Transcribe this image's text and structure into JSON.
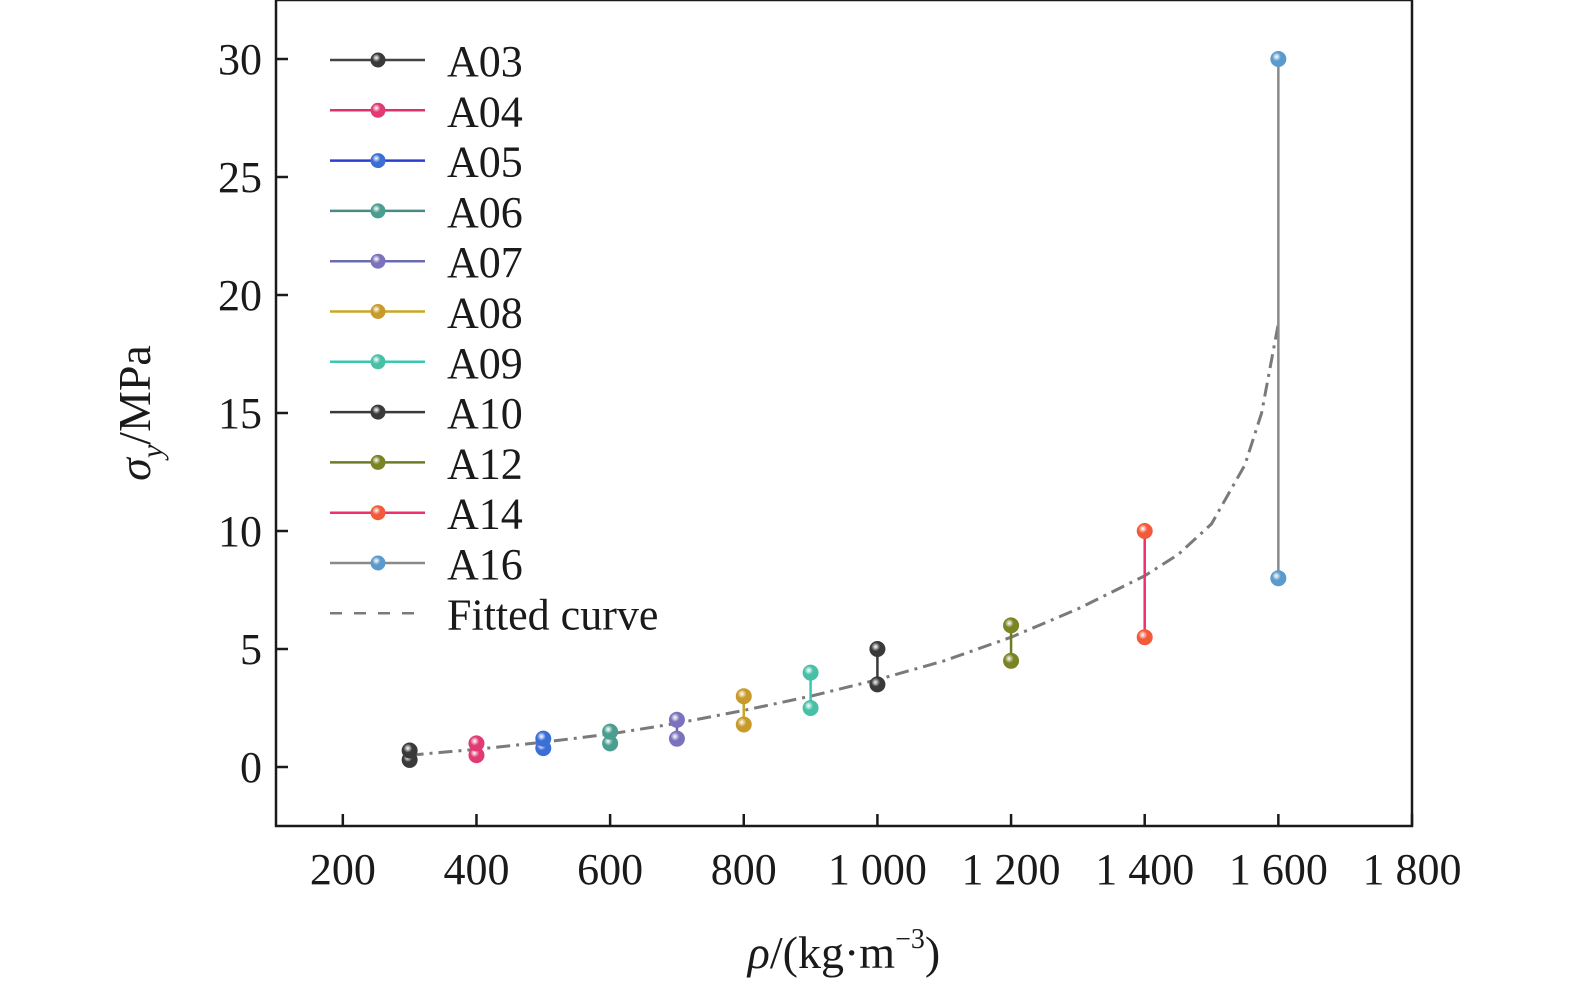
{
  "chart_data": {
    "type": "line",
    "title": "",
    "xlabel": {
      "symbol": "ρ",
      "unit_prefix": "/(kg·m",
      "exponent": "−3",
      "unit_suffix": ")"
    },
    "ylabel": {
      "symbol": "σ",
      "subscript": "y",
      "unit": "/MPa"
    },
    "xlim": [
      100,
      1800
    ],
    "ylim": [
      -2.5,
      32.5
    ],
    "xticks": [
      200,
      400,
      600,
      800,
      1000,
      1200,
      1400,
      1600,
      1800
    ],
    "xtick_labels": [
      "200",
      "400",
      "600",
      "800",
      "1 000",
      "1 200",
      "1 400",
      "1 600",
      "1 800"
    ],
    "yticks": [
      0,
      5,
      10,
      15,
      20,
      25,
      30
    ],
    "ytick_labels": [
      "0",
      "5",
      "10",
      "15",
      "20",
      "25",
      "30"
    ],
    "grid": false,
    "legend_position": "top-left",
    "series": [
      {
        "name": "A03",
        "line_color": "#444444",
        "marker_color": "#3a3a3a",
        "x": [
          300,
          300
        ],
        "y": [
          0.3,
          0.7
        ]
      },
      {
        "name": "A04",
        "line_color": "#e0306a",
        "marker_color": "#e23a72",
        "x": [
          400,
          400
        ],
        "y": [
          0.5,
          1.0
        ]
      },
      {
        "name": "A05",
        "line_color": "#2a3fd0",
        "marker_color": "#3a6fd8",
        "x": [
          500,
          500
        ],
        "y": [
          0.8,
          1.2
        ]
      },
      {
        "name": "A06",
        "line_color": "#4a8a86",
        "marker_color": "#4a9e90",
        "x": [
          600,
          600
        ],
        "y": [
          1.0,
          1.5
        ]
      },
      {
        "name": "A07",
        "line_color": "#6b6bb0",
        "marker_color": "#7a72bc",
        "x": [
          700,
          700
        ],
        "y": [
          1.2,
          2.0
        ]
      },
      {
        "name": "A08",
        "line_color": "#c8a820",
        "marker_color": "#c89a2a",
        "x": [
          800,
          800
        ],
        "y": [
          1.8,
          3.0
        ]
      },
      {
        "name": "A09",
        "line_color": "#3ac8b0",
        "marker_color": "#48c0a8",
        "x": [
          900,
          900
        ],
        "y": [
          2.5,
          4.0
        ]
      },
      {
        "name": "A10",
        "line_color": "#3a3a3a",
        "marker_color": "#3a3a3a",
        "x": [
          1000,
          1000
        ],
        "y": [
          3.5,
          5.0
        ]
      },
      {
        "name": "A12",
        "line_color": "#6f7a24",
        "marker_color": "#7a8424",
        "x": [
          1200,
          1200
        ],
        "y": [
          4.5,
          6.0
        ]
      },
      {
        "name": "A14",
        "line_color": "#f0306a",
        "marker_color": "#f25a3a",
        "x": [
          1400,
          1400
        ],
        "y": [
          5.5,
          10.0
        ]
      },
      {
        "name": "A16",
        "line_color": "#8a8a8a",
        "marker_color": "#5a9acc",
        "x": [
          1600,
          1600
        ],
        "y": [
          8.0,
          30.0
        ]
      }
    ],
    "fitted_curve": {
      "name": "Fitted curve",
      "line_color": "#7a7a7a",
      "x": [
        300,
        400,
        500,
        600,
        700,
        800,
        900,
        1000,
        1100,
        1200,
        1300,
        1400,
        1450,
        1500,
        1550,
        1575,
        1600
      ],
      "y": [
        0.5,
        0.75,
        1.05,
        1.4,
        1.85,
        2.4,
        3.0,
        3.7,
        4.5,
        5.5,
        6.7,
        8.1,
        9.0,
        10.3,
        12.8,
        15.0,
        18.8
      ]
    }
  }
}
